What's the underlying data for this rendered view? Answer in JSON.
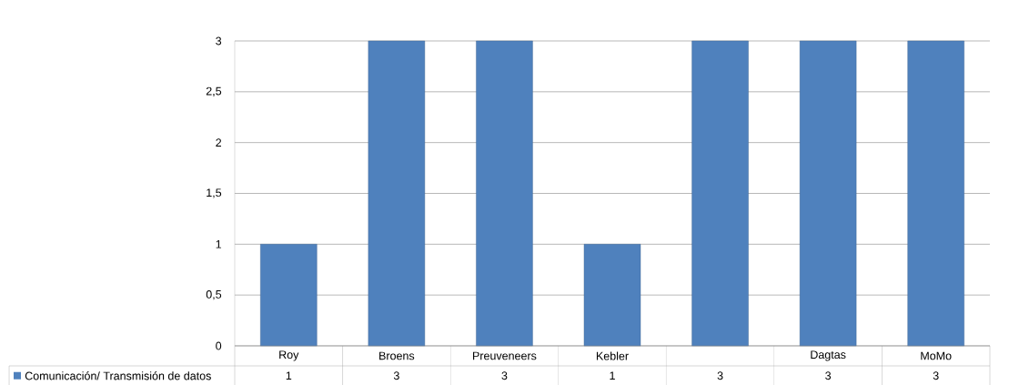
{
  "chart_data": {
    "type": "bar",
    "categories": [
      "Roy",
      "Broens",
      "Preuveneers",
      "Kebler",
      null,
      "Dagtas",
      "MoMo"
    ],
    "series": [
      {
        "name": "Comunicación/ Transmisión de datos",
        "color": "#4f81bd",
        "values": [
          1,
          3,
          3,
          1,
          3,
          3,
          3
        ]
      }
    ],
    "ylim": [
      0,
      3
    ],
    "yticks": [
      0,
      {
        "value": 0.5,
        "label": "0,5"
      },
      1,
      {
        "value": 1.5,
        "label": "1,5"
      },
      2,
      {
        "value": 2.5,
        "label": "2,5"
      },
      3
    ],
    "grid": "y",
    "legend": "bottom left",
    "data_labels": true
  }
}
